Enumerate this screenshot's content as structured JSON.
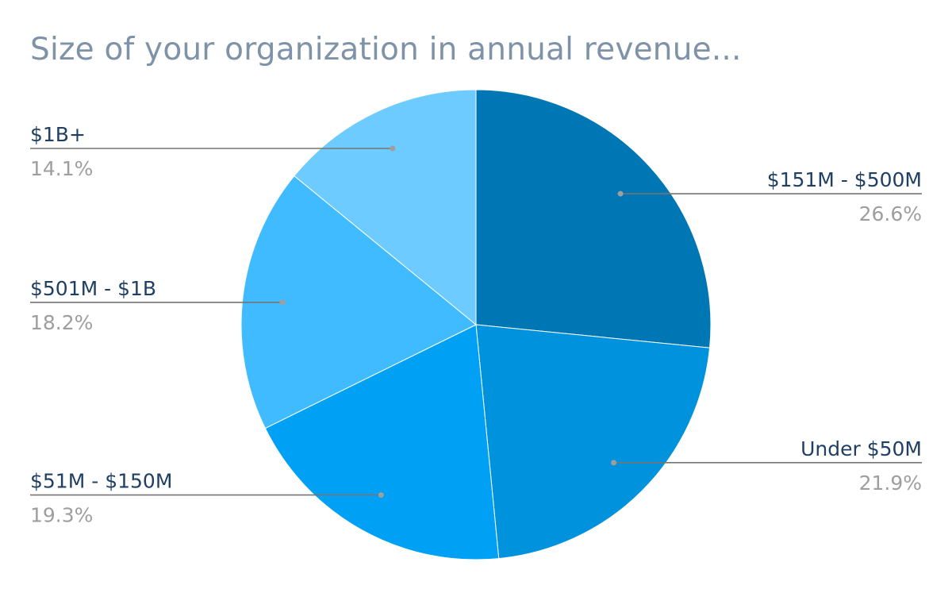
{
  "chart_data": {
    "type": "pie",
    "title": "Size of your organization in annual revenue...",
    "slices": [
      {
        "label": "$151M - $500M",
        "value": 26.6,
        "value_label": "26.6%",
        "color": "#0077b5"
      },
      {
        "label": "Under $50M",
        "value": 21.9,
        "value_label": "21.9%",
        "color": "#0092dc"
      },
      {
        "label": "$51M - $150M",
        "value": 19.3,
        "value_label": "19.3%",
        "color": "#00a1f5"
      },
      {
        "label": "$501M - $1B",
        "value": 18.2,
        "value_label": "18.2%",
        "color": "#40bbff"
      },
      {
        "label": "$1B+",
        "value": 14.1,
        "value_label": "14.1%",
        "color": "#6dcbff"
      }
    ],
    "start_angle": "12 o'clock",
    "direction": "clockwise",
    "leader_line_color": "#757575"
  }
}
